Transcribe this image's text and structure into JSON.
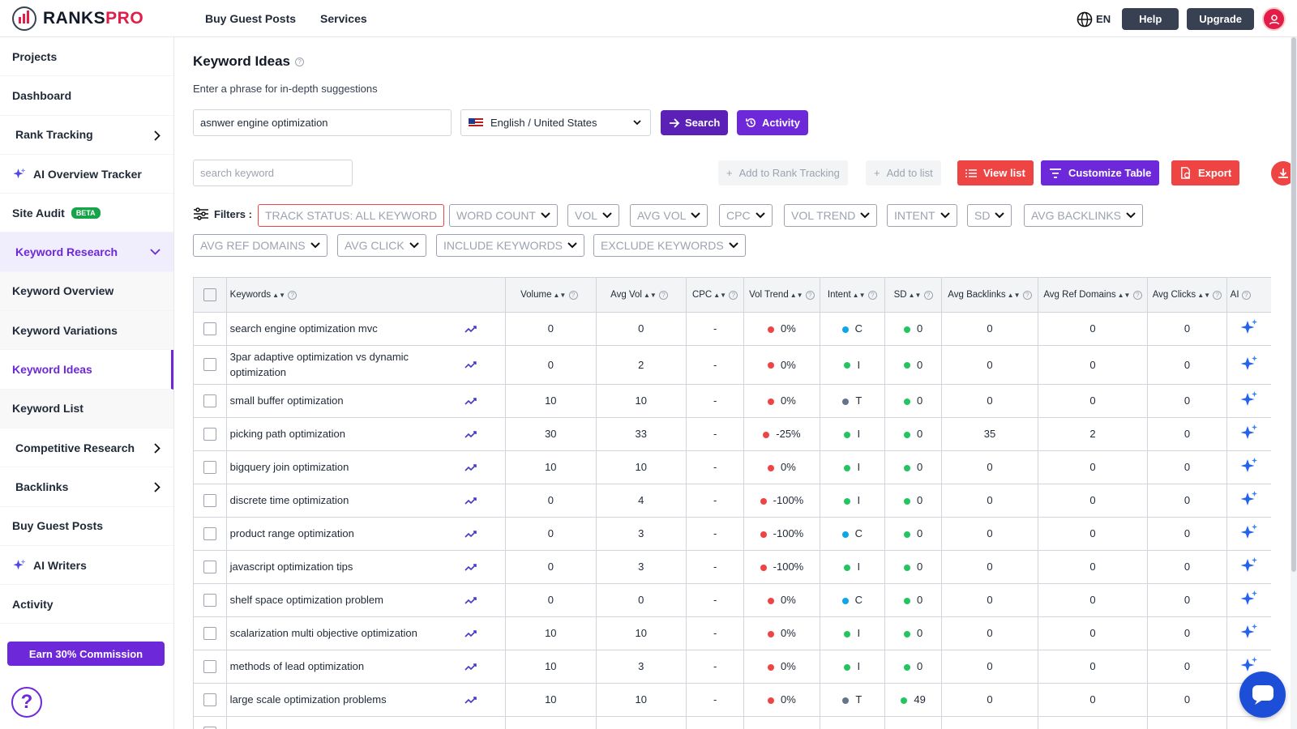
{
  "brand": {
    "name_dark": "RANKS",
    "name_red": "PRO"
  },
  "topnav": {
    "buy_guest_posts": "Buy Guest Posts",
    "services": "Services"
  },
  "topright": {
    "lang": "EN",
    "help": "Help",
    "upgrade": "Upgrade"
  },
  "sidebar": {
    "projects": "Projects",
    "dashboard": "Dashboard",
    "rank_tracking": "Rank Tracking",
    "ai_overview": "AI Overview Tracker",
    "site_audit": "Site Audit",
    "beta": "BETA",
    "keyword_research": "Keyword Research",
    "keyword_overview": "Keyword Overview",
    "keyword_variations": "Keyword Variations",
    "keyword_ideas": "Keyword Ideas",
    "keyword_list": "Keyword List",
    "competitive_research": "Competitive Research",
    "backlinks": "Backlinks",
    "buy_guest_posts": "Buy Guest Posts",
    "ai_writers": "AI Writers",
    "activity": "Activity",
    "earn": "Earn 30% Commission"
  },
  "page": {
    "title": "Keyword Ideas",
    "subtitle": "Enter a phrase for in-depth suggestions",
    "phrase_value": "asnwer engine optimization",
    "country": "English / United States",
    "search_btn": "Search",
    "activity_btn": "Activity",
    "kw_placeholder": "search keyword",
    "add_rank": "Add to Rank Tracking",
    "add_list": "Add to list",
    "view_list": "View list",
    "customize": "Customize Table",
    "export": "Export",
    "filters_label": "Filters :"
  },
  "filters": [
    "TRACK STATUS: ALL KEYWORD",
    "WORD COUNT",
    "VOL",
    "AVG VOL",
    "CPC",
    "VOL TREND",
    "INTENT",
    "SD",
    "AVG BACKLINKS",
    "AVG REF DOMAINS",
    "AVG CLICK",
    "INCLUDE KEYWORDS",
    "EXCLUDE KEYWORDS"
  ],
  "table": {
    "headers": [
      "Keywords",
      "Volume",
      "Avg Vol",
      "CPC",
      "Vol Trend",
      "Intent",
      "SD",
      "Avg Backlinks",
      "Avg Ref Domains",
      "Avg Clicks",
      "AI"
    ],
    "rows": [
      {
        "kw": "search engine optimization mvc",
        "vol": "0",
        "avg": "0",
        "cpc": "-",
        "trend": "0%",
        "intent": "C",
        "sd": "0",
        "bl": "0",
        "rd": "0",
        "clicks": "0"
      },
      {
        "kw": "3par adaptive optimization vs dynamic optimization",
        "vol": "0",
        "avg": "2",
        "cpc": "-",
        "trend": "0%",
        "intent": "I",
        "sd": "0",
        "bl": "0",
        "rd": "0",
        "clicks": "0"
      },
      {
        "kw": "small buffer optimization",
        "vol": "10",
        "avg": "10",
        "cpc": "-",
        "trend": "0%",
        "intent": "T",
        "sd": "0",
        "bl": "0",
        "rd": "0",
        "clicks": "0"
      },
      {
        "kw": "picking path optimization",
        "vol": "30",
        "avg": "33",
        "cpc": "-",
        "trend": "-25%",
        "intent": "I",
        "sd": "0",
        "bl": "35",
        "rd": "2",
        "clicks": "0"
      },
      {
        "kw": "bigquery join optimization",
        "vol": "10",
        "avg": "10",
        "cpc": "-",
        "trend": "0%",
        "intent": "I",
        "sd": "0",
        "bl": "0",
        "rd": "0",
        "clicks": "0"
      },
      {
        "kw": "discrete time optimization",
        "vol": "0",
        "avg": "4",
        "cpc": "-",
        "trend": "-100%",
        "intent": "I",
        "sd": "0",
        "bl": "0",
        "rd": "0",
        "clicks": "0"
      },
      {
        "kw": "product range optimization",
        "vol": "0",
        "avg": "3",
        "cpc": "-",
        "trend": "-100%",
        "intent": "C",
        "sd": "0",
        "bl": "0",
        "rd": "0",
        "clicks": "0"
      },
      {
        "kw": "javascript optimization tips",
        "vol": "0",
        "avg": "3",
        "cpc": "-",
        "trend": "-100%",
        "intent": "I",
        "sd": "0",
        "bl": "0",
        "rd": "0",
        "clicks": "0"
      },
      {
        "kw": "shelf space optimization problem",
        "vol": "0",
        "avg": "0",
        "cpc": "-",
        "trend": "0%",
        "intent": "C",
        "sd": "0",
        "bl": "0",
        "rd": "0",
        "clicks": "0"
      },
      {
        "kw": "scalarization multi objective optimization",
        "vol": "10",
        "avg": "10",
        "cpc": "-",
        "trend": "0%",
        "intent": "I",
        "sd": "0",
        "bl": "0",
        "rd": "0",
        "clicks": "0"
      },
      {
        "kw": "methods of lead optimization",
        "vol": "10",
        "avg": "3",
        "cpc": "-",
        "trend": "0%",
        "intent": "I",
        "sd": "0",
        "bl": "0",
        "rd": "0",
        "clicks": "0"
      },
      {
        "kw": "large scale optimization problems",
        "vol": "10",
        "avg": "10",
        "cpc": "-",
        "trend": "0%",
        "intent": "T",
        "sd": "49",
        "bl": "0",
        "rd": "0",
        "clicks": "0"
      },
      {
        "kw": "",
        "vol": "",
        "avg": "",
        "cpc": "",
        "trend": "",
        "intent": "",
        "sd": "",
        "bl": "",
        "rd": "",
        "clicks": ""
      }
    ]
  },
  "colors": {
    "intent_C": "#0ea5e9",
    "intent_I": "#22c55e",
    "intent_T": "#64748b",
    "trend_dot": "#ef4444",
    "sd_dot": "#22c55e",
    "accent": "#6d28d9"
  }
}
